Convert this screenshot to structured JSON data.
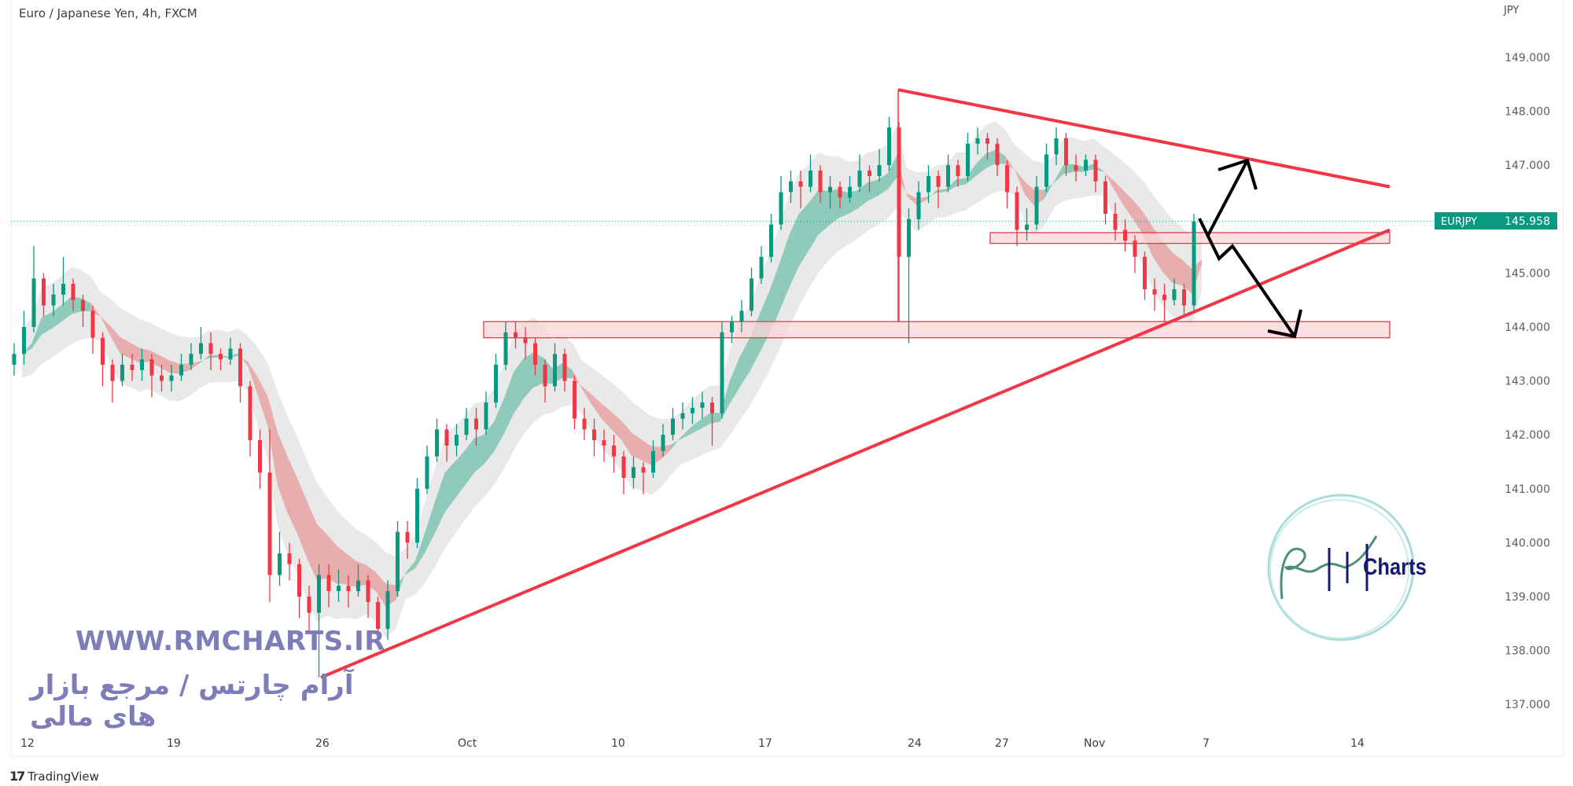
{
  "header": {
    "title": "Euro / Japanese Yen, 4h, FXCM",
    "currency": "JPY"
  },
  "last_price": {
    "symbol": "EURJPY",
    "value": "145.958",
    "color": "#089981"
  },
  "watermark": {
    "url": "WWW.RMCHARTS.IR",
    "persian": "آرام چارتس / مرجع بازار های مالی",
    "logo_text": "Charts",
    "color": "#7e7db8"
  },
  "footer": {
    "brand": "TradingView"
  },
  "colors": {
    "up": "#089981",
    "down": "#f23645",
    "drawing": "#f23645",
    "zone_fill": "#fbd5d8",
    "arrows": "#000000",
    "ribbon_up": "#7fc4b2",
    "ribbon_down": "#e8a3a3",
    "envelope": "#e3e3e3"
  },
  "chart_data": {
    "type": "candlestick",
    "title": "Euro / Japanese Yen, 4h, FXCM",
    "ylabel": "JPY",
    "ylim": [
      136.7,
      149.5
    ],
    "y_ticks": [
      "149.000",
      "148.000",
      "147.000",
      "145.000",
      "144.000",
      "143.000",
      "142.000",
      "141.000",
      "140.000",
      "139.000",
      "138.000",
      "137.000"
    ],
    "x_ticks": [
      "12",
      "19",
      "26",
      "Oct",
      "10",
      "17",
      "24",
      "27",
      "Nov",
      "7",
      "14"
    ],
    "grid": false,
    "candles_ohlc": [
      [
        143.3,
        143.7,
        143.1,
        143.5
      ],
      [
        143.5,
        144.3,
        143.3,
        144.0
      ],
      [
        144.0,
        145.5,
        143.9,
        144.9
      ],
      [
        144.9,
        145.0,
        144.2,
        144.4
      ],
      [
        144.4,
        144.8,
        144.2,
        144.6
      ],
      [
        144.6,
        145.3,
        144.4,
        144.8
      ],
      [
        144.8,
        144.9,
        144.3,
        144.5
      ],
      [
        144.5,
        144.6,
        144.0,
        144.3
      ],
      [
        144.3,
        144.4,
        143.5,
        143.8
      ],
      [
        143.8,
        143.9,
        142.9,
        143.3
      ],
      [
        143.3,
        143.4,
        142.6,
        143.0
      ],
      [
        143.0,
        143.5,
        142.9,
        143.3
      ],
      [
        143.3,
        143.5,
        143.0,
        143.2
      ],
      [
        143.2,
        143.6,
        143.0,
        143.4
      ],
      [
        143.4,
        143.5,
        142.7,
        143.1
      ],
      [
        143.1,
        143.3,
        142.8,
        143.0
      ],
      [
        143.0,
        143.3,
        142.8,
        143.1
      ],
      [
        143.1,
        143.5,
        143.0,
        143.3
      ],
      [
        143.3,
        143.7,
        143.2,
        143.5
      ],
      [
        143.5,
        144.0,
        143.4,
        143.7
      ],
      [
        143.7,
        143.9,
        143.2,
        143.5
      ],
      [
        143.5,
        143.6,
        143.2,
        143.4
      ],
      [
        143.4,
        143.8,
        143.3,
        143.6
      ],
      [
        143.6,
        143.7,
        142.6,
        142.9
      ],
      [
        142.9,
        143.0,
        141.6,
        141.9
      ],
      [
        141.9,
        142.1,
        141.0,
        141.3
      ],
      [
        141.3,
        142.1,
        138.9,
        139.4
      ],
      [
        139.4,
        140.2,
        139.2,
        139.8
      ],
      [
        139.8,
        140.0,
        139.3,
        139.6
      ],
      [
        139.6,
        139.7,
        138.6,
        139.0
      ],
      [
        139.0,
        139.2,
        138.3,
        138.7
      ],
      [
        138.7,
        139.6,
        137.5,
        139.4
      ],
      [
        139.4,
        139.6,
        138.8,
        139.1
      ],
      [
        139.1,
        139.5,
        138.9,
        139.2
      ],
      [
        139.2,
        139.4,
        138.8,
        139.1
      ],
      [
        139.1,
        139.6,
        139.0,
        139.3
      ],
      [
        139.3,
        139.4,
        138.6,
        138.9
      ],
      [
        138.9,
        139.0,
        138.1,
        138.4
      ],
      [
        138.4,
        139.3,
        138.2,
        139.1
      ],
      [
        139.1,
        140.4,
        139.0,
        140.2
      ],
      [
        140.2,
        140.4,
        139.7,
        140.0
      ],
      [
        140.0,
        141.2,
        139.9,
        141.0
      ],
      [
        141.0,
        141.8,
        140.9,
        141.6
      ],
      [
        141.6,
        142.3,
        141.5,
        142.1
      ],
      [
        142.1,
        142.2,
        141.5,
        141.8
      ],
      [
        141.8,
        142.2,
        141.6,
        142.0
      ],
      [
        142.0,
        142.5,
        141.9,
        142.3
      ],
      [
        142.3,
        142.5,
        141.8,
        142.1
      ],
      [
        142.1,
        142.8,
        142.0,
        142.6
      ],
      [
        142.6,
        143.5,
        142.5,
        143.3
      ],
      [
        143.3,
        144.1,
        143.2,
        143.9
      ],
      [
        143.9,
        144.1,
        143.6,
        143.8
      ],
      [
        143.8,
        144.0,
        143.4,
        143.7
      ],
      [
        143.7,
        143.8,
        143.1,
        143.3
      ],
      [
        143.3,
        143.4,
        142.6,
        142.9
      ],
      [
        142.9,
        143.7,
        142.8,
        143.5
      ],
      [
        143.5,
        143.6,
        142.8,
        143.0
      ],
      [
        143.0,
        143.1,
        142.1,
        142.3
      ],
      [
        142.3,
        142.5,
        141.9,
        142.1
      ],
      [
        142.1,
        142.3,
        141.6,
        141.9
      ],
      [
        141.9,
        142.1,
        141.5,
        141.8
      ],
      [
        141.8,
        142.0,
        141.3,
        141.6
      ],
      [
        141.6,
        141.7,
        140.9,
        141.2
      ],
      [
        141.2,
        141.6,
        141.0,
        141.4
      ],
      [
        141.4,
        141.5,
        140.9,
        141.3
      ],
      [
        141.3,
        141.9,
        141.2,
        141.7
      ],
      [
        141.7,
        142.2,
        141.6,
        142.0
      ],
      [
        142.0,
        142.5,
        141.9,
        142.3
      ],
      [
        142.3,
        142.6,
        142.1,
        142.4
      ],
      [
        142.4,
        142.7,
        142.2,
        142.5
      ],
      [
        142.5,
        142.8,
        142.3,
        142.6
      ],
      [
        142.6,
        142.7,
        141.8,
        142.4
      ],
      [
        142.4,
        144.1,
        142.3,
        143.9
      ],
      [
        143.9,
        144.2,
        143.7,
        144.1
      ],
      [
        144.1,
        144.5,
        143.9,
        144.3
      ],
      [
        144.3,
        145.1,
        144.2,
        144.9
      ],
      [
        144.9,
        145.5,
        144.8,
        145.3
      ],
      [
        145.3,
        146.1,
        145.2,
        145.9
      ],
      [
        145.9,
        146.8,
        145.8,
        146.5
      ],
      [
        146.5,
        146.9,
        146.3,
        146.7
      ],
      [
        146.7,
        146.9,
        146.2,
        146.6
      ],
      [
        146.6,
        147.2,
        146.5,
        146.9
      ],
      [
        146.9,
        147.0,
        146.3,
        146.5
      ],
      [
        146.5,
        146.8,
        146.2,
        146.6
      ],
      [
        146.6,
        146.7,
        146.2,
        146.4
      ],
      [
        146.4,
        146.8,
        146.3,
        146.6
      ],
      [
        146.6,
        147.2,
        146.5,
        146.9
      ],
      [
        146.9,
        147.0,
        146.5,
        146.8
      ],
      [
        146.8,
        147.3,
        146.7,
        147.0
      ],
      [
        147.0,
        147.9,
        146.9,
        147.7
      ],
      [
        147.7,
        147.8,
        144.1,
        145.3
      ],
      [
        145.3,
        146.2,
        143.7,
        146.0
      ],
      [
        146.0,
        146.7,
        145.8,
        146.5
      ],
      [
        146.5,
        147.0,
        146.3,
        146.8
      ],
      [
        146.8,
        146.9,
        146.2,
        146.6
      ],
      [
        146.6,
        147.2,
        146.5,
        147.0
      ],
      [
        147.0,
        147.1,
        146.6,
        146.8
      ],
      [
        146.8,
        147.6,
        146.7,
        147.4
      ],
      [
        147.4,
        147.7,
        147.2,
        147.5
      ],
      [
        147.5,
        147.6,
        147.1,
        147.4
      ],
      [
        147.4,
        147.5,
        146.8,
        147.0
      ],
      [
        147.0,
        147.1,
        146.2,
        146.5
      ],
      [
        146.5,
        146.6,
        145.5,
        145.8
      ],
      [
        145.8,
        146.2,
        145.6,
        145.9
      ],
      [
        145.9,
        146.8,
        145.8,
        146.6
      ],
      [
        146.6,
        147.4,
        146.5,
        147.2
      ],
      [
        147.2,
        147.7,
        147.0,
        147.5
      ],
      [
        147.5,
        147.6,
        146.8,
        147.0
      ],
      [
        147.0,
        147.2,
        146.7,
        146.9
      ],
      [
        146.9,
        147.2,
        146.8,
        147.1
      ],
      [
        147.1,
        147.2,
        146.5,
        146.7
      ],
      [
        146.7,
        146.8,
        145.9,
        146.1
      ],
      [
        146.1,
        146.3,
        145.6,
        145.8
      ],
      [
        145.8,
        146.0,
        145.4,
        145.6
      ],
      [
        145.6,
        145.7,
        145.0,
        145.3
      ],
      [
        145.3,
        145.4,
        144.5,
        144.7
      ],
      [
        144.7,
        144.9,
        144.3,
        144.6
      ],
      [
        144.6,
        144.8,
        144.1,
        144.5
      ],
      [
        144.5,
        144.9,
        144.4,
        144.7
      ],
      [
        144.7,
        144.8,
        144.2,
        144.4
      ],
      [
        144.4,
        146.1,
        144.3,
        145.958
      ]
    ],
    "drawings": {
      "support_zones": [
        [
          143.8,
          144.1
        ],
        [
          145.55,
          145.75
        ]
      ],
      "upper_trendline": [
        148.4,
        146.6
      ],
      "lower_trendline": [
        137.5,
        145.8
      ],
      "current_price_line": 145.958
    }
  }
}
